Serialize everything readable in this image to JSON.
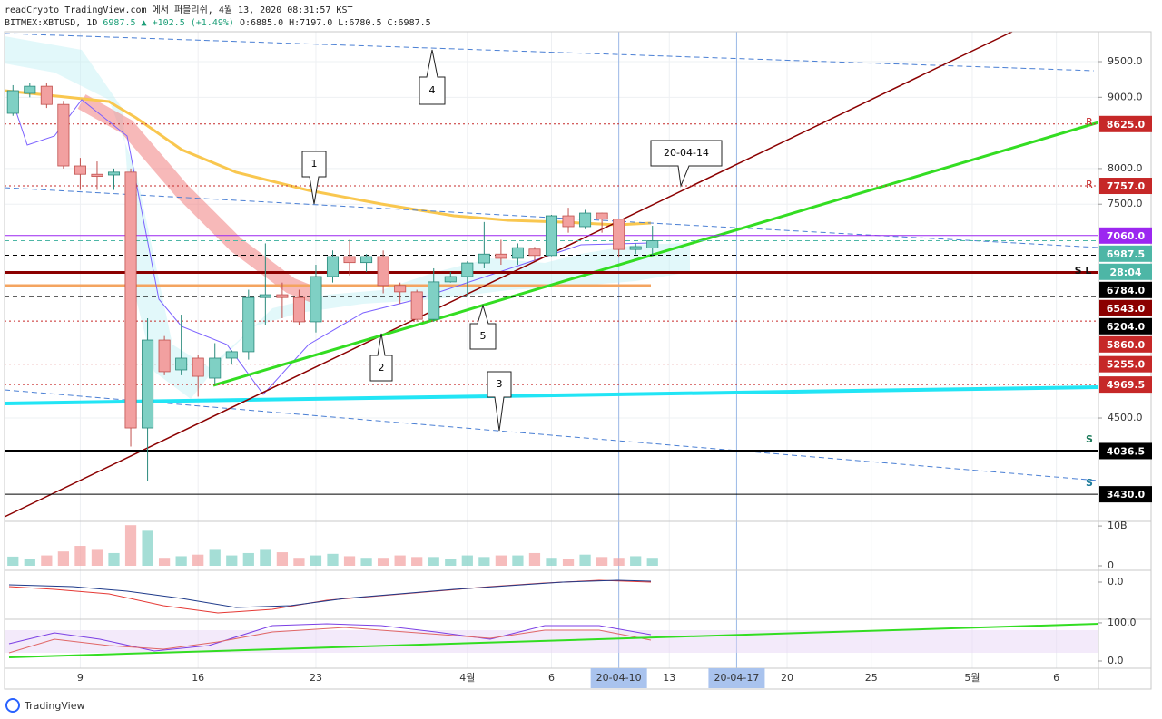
{
  "chart_data": {
    "type": "candlestick",
    "publisher": "readCrypto TradingView.com 에서 퍼블리쉬, 4월 13, 2020 08:31:57 KST",
    "symbol": "BITMEX:XBTUSD, 1D",
    "last": "6987.5",
    "change": "▲ +102.5 (+1.49%)",
    "ohlc": "O:6885.0 H:7197.0 L:6780.5 C:6987.5",
    "categories": [
      null,
      null,
      null,
      null,
      "9",
      null,
      null,
      null,
      null,
      null,
      null,
      "16",
      null,
      null,
      null,
      null,
      null,
      null,
      "23",
      null,
      null,
      null,
      null,
      null,
      null,
      null,
      null,
      "4월",
      null,
      null,
      null,
      null,
      "6",
      null,
      null,
      null,
      "20-04-10",
      null,
      null,
      "13",
      null,
      null,
      null,
      "20-04-17",
      null,
      null,
      "20",
      null,
      null,
      null,
      null,
      "25",
      null,
      null,
      null,
      null,
      null,
      "5월",
      null,
      null,
      null,
      null,
      "6",
      null,
      null
    ],
    "open": [
      8775,
      9055,
      9155,
      8900,
      8037,
      7920,
      7910,
      7950,
      4360,
      5594,
      5175,
      5340,
      5060,
      5340,
      5430,
      6190,
      6230,
      6190,
      5850,
      6485,
      6765,
      6680,
      6765,
      6360,
      6270,
      5885,
      6410,
      6485,
      6675,
      6800,
      6740,
      6870,
      6780,
      7337,
      7185,
      7375,
      7290,
      6865,
      6885,
      null,
      null,
      null,
      null,
      null,
      null,
      null,
      null,
      null,
      null,
      null,
      null,
      null,
      null,
      null,
      null,
      null,
      null,
      null,
      null,
      null,
      null,
      null,
      null,
      null,
      null
    ],
    "high": [
      9170,
      9200,
      9200,
      8950,
      8150,
      8100,
      8000,
      8000,
      5900,
      5650,
      5950,
      5380,
      5550,
      5450,
      6300,
      6950,
      6400,
      6300,
      6650,
      6850,
      7000,
      6800,
      6850,
      6400,
      6300,
      6600,
      6550,
      6700,
      7250,
      7000,
      6950,
      6900,
      7350,
      7450,
      7420,
      7380,
      7300,
      6950,
      7197,
      null,
      null,
      null,
      null,
      null,
      null,
      null,
      null,
      null,
      null,
      null,
      null,
      null,
      null,
      null,
      null,
      null,
      null,
      null,
      null,
      null,
      null,
      null,
      null,
      null,
      null
    ],
    "low": [
      8740,
      9000,
      8850,
      8000,
      7700,
      7700,
      7700,
      4100,
      3620,
      5100,
      5100,
      4800,
      4970,
      5250,
      5320,
      5800,
      5900,
      5800,
      5700,
      6400,
      6500,
      6550,
      6250,
      6100,
      5850,
      5850,
      6400,
      6200,
      6600,
      6650,
      6650,
      6700,
      6770,
      7100,
      7150,
      7100,
      6750,
      6800,
      6780.5,
      null,
      null,
      null,
      null,
      null,
      null,
      null,
      null,
      null,
      null,
      null,
      null,
      null,
      null,
      null,
      null,
      null,
      null,
      null,
      null,
      null,
      null,
      null,
      null,
      null,
      null
    ],
    "close": [
      9093,
      9155,
      8900,
      8037,
      7920,
      7890,
      7950,
      4360,
      5594,
      5150,
      5340,
      5085,
      5340,
      5430,
      6190,
      6230,
      6190,
      5850,
      6485,
      6765,
      6680,
      6765,
      6360,
      6270,
      5885,
      6410,
      6485,
      6675,
      6800,
      6740,
      6890,
      6780,
      7337,
      7185,
      7375,
      7290,
      6865,
      6905,
      6987.5,
      null,
      null,
      null,
      null,
      null,
      null,
      null,
      null,
      null,
      null,
      null,
      null,
      null,
      null,
      null,
      null,
      null,
      null,
      null,
      null,
      null,
      null,
      null,
      null,
      null,
      null
    ],
    "volume": [
      2.3,
      1.6,
      2.6,
      3.6,
      5,
      4,
      3.2,
      10.2,
      8.8,
      2,
      2.4,
      2.8,
      4,
      2.6,
      3.2,
      4,
      3.4,
      2,
      2.6,
      3,
      2.4,
      2,
      2,
      2.6,
      2.2,
      2.2,
      1.6,
      2.6,
      2.2,
      2.6,
      2.6,
      3.2,
      2,
      1.6,
      2.8,
      2.2,
      2,
      2.4,
      2,
      null,
      null,
      null,
      null,
      null,
      null,
      null,
      null,
      null,
      null,
      null,
      null,
      null,
      null,
      null,
      null,
      null,
      null,
      null,
      null,
      null,
      null,
      null,
      null,
      null,
      null
    ],
    "up_color": "#7fd0c4",
    "down_color": "#f2a0a0",
    "ylim": [
      3050,
      9920
    ],
    "yticks": [
      {
        "value": 9500,
        "label": "9500.0"
      },
      {
        "value": 9000,
        "label": "9000.0"
      },
      {
        "value": 8000,
        "label": "8000.0"
      },
      {
        "value": 7500,
        "label": "7500.0"
      },
      {
        "value": 4500,
        "label": "4500.0"
      }
    ],
    "volume_ylim": [
      0,
      10.7
    ],
    "volume_yticks": [
      {
        "value": 10,
        "label": "10B"
      },
      0
    ],
    "macd_ylim": [
      -3.33,
      1
    ],
    "macd_yticks": [
      {
        "value": 0,
        "label": "0.0"
      }
    ],
    "rsi_ylim": [
      -19,
      107
    ],
    "rsi_yticks": [
      {
        "value": 100,
        "label": "100.0"
      },
      {
        "value": 0,
        "label": "0.0"
      }
    ],
    "levels": [
      {
        "value": 8625,
        "label": "8625.0",
        "color": "#c62828",
        "style": "dotted"
      },
      {
        "value": 7757,
        "label": "7757.0",
        "color": "#c62828",
        "style": "dotted"
      },
      {
        "value": 7060,
        "label": "7060.0",
        "color": "#9c27f0",
        "style": "solid"
      },
      {
        "value": 6987.5,
        "label": "6987.5",
        "color": "#4db6a6",
        "style": "dashed"
      },
      {
        "value": 6784,
        "label": "6784.0",
        "color": "#000000",
        "style": "dashed"
      },
      {
        "value": 6543,
        "label": "6543.0",
        "color": "#8b0000",
        "style": "thick"
      },
      {
        "value": 6204,
        "label": "6204.0",
        "color": "#000000",
        "style": "dashed"
      },
      {
        "value": 5860,
        "label": "5860.0",
        "color": "#c62828",
        "style": "dotted"
      },
      {
        "value": 5255,
        "label": "5255.0",
        "color": "#c62828",
        "style": "dotted"
      },
      {
        "value": 4969.5,
        "label": "4969.5",
        "color": "#c62828",
        "style": "dotted"
      },
      {
        "value": 4036.5,
        "label": "4036.5",
        "color": "#000000",
        "style": "thick"
      },
      {
        "value": 3430,
        "label": "3430.0",
        "color": "#000000",
        "style": "solid"
      }
    ],
    "countdown": "28:04",
    "annotations": [
      "1",
      "2",
      "3",
      "4",
      "5",
      "20-04-14",
      "R",
      "R",
      "S",
      "S",
      "S L"
    ],
    "footer": "TradingView"
  }
}
